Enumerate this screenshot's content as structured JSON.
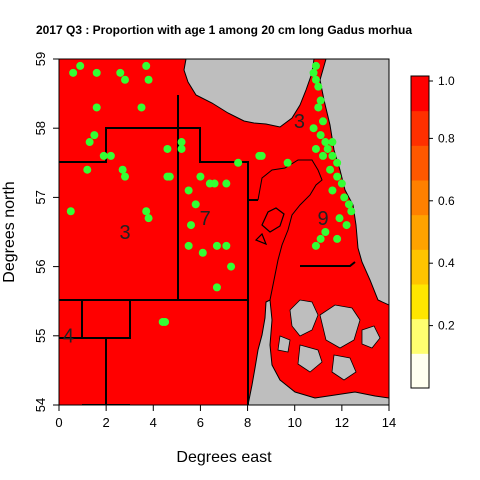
{
  "chart_data": {
    "type": "map",
    "title": "2017 Q3 : Proportion with age 1 among 20 cm long Gadus morhua",
    "xlabel": "Degrees east",
    "ylabel": "Degrees north",
    "xlim": [
      0,
      14
    ],
    "ylim": [
      54,
      59
    ],
    "x_ticks": [
      0,
      2,
      4,
      6,
      8,
      10,
      12,
      14
    ],
    "y_ticks": [
      54,
      55,
      56,
      57,
      58,
      59
    ],
    "legend": {
      "placement": "right",
      "ticks": [
        "0.2",
        "0.4",
        "0.6",
        "0.8",
        "1.0"
      ],
      "colors": [
        "#fffff0",
        "#ffff70",
        "#ffe600",
        "#ffc400",
        "#ffa200",
        "#ff8000",
        "#ff5800",
        "#ff3000",
        "#ff0000"
      ]
    },
    "area_labels": [
      {
        "text": "3",
        "lon": 2.8,
        "lat": 56.4
      },
      {
        "text": "7",
        "lon": 6.2,
        "lat": 56.6
      },
      {
        "text": "3",
        "lon": 10.2,
        "lat": 58.0
      },
      {
        "text": "9",
        "lon": 11.2,
        "lat": 56.6
      },
      {
        "text": "4",
        "lon": 0.4,
        "lat": 54.9
      }
    ],
    "stations": [
      [
        0.6,
        58.8
      ],
      [
        0.9,
        58.9
      ],
      [
        1.6,
        58.8
      ],
      [
        2.6,
        58.8
      ],
      [
        2.8,
        58.7
      ],
      [
        3.7,
        58.9
      ],
      [
        3.8,
        58.7
      ],
      [
        3.5,
        58.3
      ],
      [
        1.6,
        58.3
      ],
      [
        1.5,
        57.9
      ],
      [
        1.3,
        57.8
      ],
      [
        2.2,
        57.6
      ],
      [
        1.9,
        57.6
      ],
      [
        1.2,
        57.4
      ],
      [
        2.7,
        57.4
      ],
      [
        2.8,
        57.3
      ],
      [
        0.5,
        56.8
      ],
      [
        3.7,
        56.8
      ],
      [
        3.8,
        56.7
      ],
      [
        4.6,
        57.7
      ],
      [
        5.2,
        57.8
      ],
      [
        5.2,
        57.7
      ],
      [
        4.6,
        57.3
      ],
      [
        4.7,
        57.3
      ],
      [
        5.5,
        57.1
      ],
      [
        6.0,
        57.3
      ],
      [
        6.4,
        57.2
      ],
      [
        6.6,
        57.2
      ],
      [
        7.1,
        57.2
      ],
      [
        7.6,
        57.5
      ],
      [
        8.5,
        57.6
      ],
      [
        8.6,
        57.6
      ],
      [
        5.6,
        56.6
      ],
      [
        5.8,
        56.9
      ],
      [
        5.5,
        56.3
      ],
      [
        6.1,
        56.2
      ],
      [
        6.7,
        56.3
      ],
      [
        7.1,
        56.3
      ],
      [
        7.3,
        56.0
      ],
      [
        6.7,
        55.7
      ],
      [
        4.4,
        55.2
      ],
      [
        4.5,
        55.2
      ],
      [
        10.9,
        58.9
      ],
      [
        10.8,
        58.8
      ],
      [
        10.9,
        58.7
      ],
      [
        11.0,
        58.6
      ],
      [
        11.1,
        58.4
      ],
      [
        11.0,
        58.3
      ],
      [
        11.2,
        58.1
      ],
      [
        10.8,
        58.0
      ],
      [
        11.1,
        57.9
      ],
      [
        11.3,
        57.8
      ],
      [
        11.4,
        57.7
      ],
      [
        10.9,
        57.7
      ],
      [
        11.2,
        57.6
      ],
      [
        11.6,
        57.6
      ],
      [
        11.8,
        57.5
      ],
      [
        11.5,
        57.4
      ],
      [
        11.8,
        57.3
      ],
      [
        12.0,
        57.2
      ],
      [
        11.6,
        57.1
      ],
      [
        12.1,
        57.0
      ],
      [
        12.3,
        56.9
      ],
      [
        12.4,
        56.8
      ],
      [
        11.9,
        56.7
      ],
      [
        12.2,
        56.6
      ],
      [
        11.3,
        56.5
      ],
      [
        11.1,
        56.4
      ],
      [
        10.9,
        56.3
      ],
      [
        11.8,
        56.4
      ],
      [
        9.7,
        57.5
      ],
      [
        11.6,
        57.8
      ]
    ]
  }
}
